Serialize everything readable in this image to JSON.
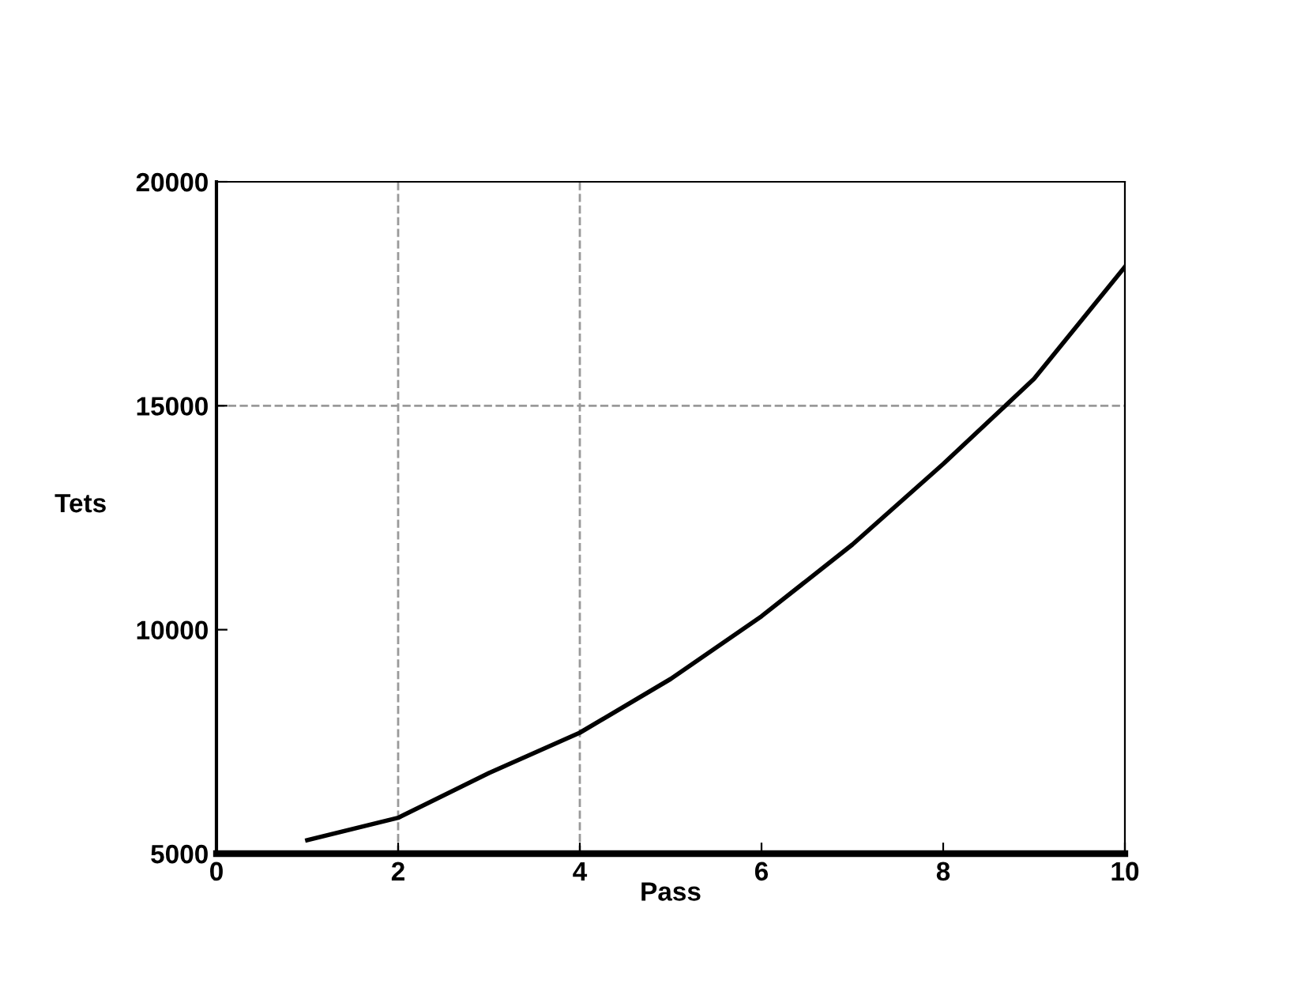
{
  "chart_data": {
    "type": "line",
    "xlabel": "Pass",
    "ylabel": "Tets",
    "x": [
      1,
      2,
      3,
      4,
      5,
      6,
      7,
      8,
      9,
      10
    ],
    "series": [
      {
        "color": "#000000",
        "values": [
          5300,
          5800,
          6800,
          7700,
          8900,
          10300,
          11900,
          13700,
          15600,
          18100
        ]
      }
    ],
    "xlim": [
      0,
      10
    ],
    "xticks": [
      0,
      2,
      4,
      6,
      8,
      10
    ],
    "ylim": [
      5000,
      20000
    ],
    "yticks": [
      5000,
      10000,
      15000,
      20000
    ],
    "ref_lines": [
      {
        "axis": "x",
        "value": 2,
        "color": "#999999",
        "line_style": "dashed"
      },
      {
        "axis": "x",
        "value": 4,
        "color": "#999999",
        "line_style": "dashed"
      },
      {
        "axis": "y",
        "value": 15000,
        "color": "#999999",
        "line_style": "dashed"
      }
    ],
    "grid": false,
    "marker": "none",
    "line_style": "solid"
  }
}
